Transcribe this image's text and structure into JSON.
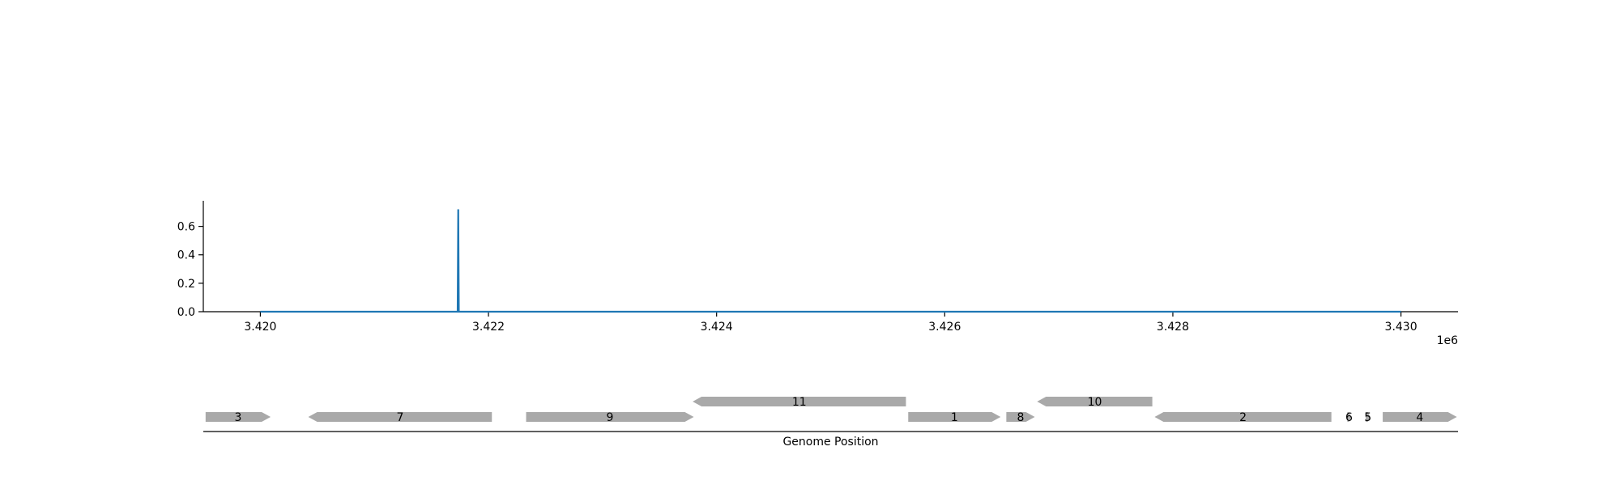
{
  "chart_data": {
    "type": "line",
    "title": "",
    "signal": {
      "ylabel": "",
      "xlim": [
        3419500,
        3430500
      ],
      "ylim": [
        0,
        0.78
      ],
      "x_ticks": [
        3420000,
        3422000,
        3424000,
        3426000,
        3428000,
        3430000
      ],
      "x_tick_labels": [
        "3.420",
        "3.422",
        "3.424",
        "3.426",
        "3.428",
        "3.430"
      ],
      "x_offset_label": "1e6",
      "y_ticks": [
        0.0,
        0.2,
        0.4,
        0.6
      ],
      "y_tick_labels": [
        "0.0",
        "0.2",
        "0.4",
        "0.6"
      ],
      "series": [
        {
          "color": "#1f77b4",
          "points": [
            [
              3420000,
              0.0
            ],
            [
              3421730,
              0.0
            ],
            [
              3421735,
              0.72
            ],
            [
              3421740,
              0.0
            ],
            [
              3430000,
              0.0
            ]
          ]
        }
      ]
    },
    "genes": {
      "xlabel": "Genome Position",
      "items": [
        {
          "label": "3",
          "start": 3419520,
          "end": 3420090,
          "strand": "+",
          "row": 0
        },
        {
          "label": "7",
          "start": 3420420,
          "end": 3422030,
          "strand": "-",
          "row": 0
        },
        {
          "label": "9",
          "start": 3422330,
          "end": 3423800,
          "strand": "+",
          "row": 0
        },
        {
          "label": "11",
          "start": 3423790,
          "end": 3425660,
          "strand": "-",
          "row": 1
        },
        {
          "label": "1",
          "start": 3425680,
          "end": 3426490,
          "strand": "+",
          "row": 0
        },
        {
          "label": "8",
          "start": 3426540,
          "end": 3426790,
          "strand": "+",
          "row": 0
        },
        {
          "label": "10",
          "start": 3426810,
          "end": 3427820,
          "strand": "-",
          "row": 1
        },
        {
          "label": "2",
          "start": 3427840,
          "end": 3429390,
          "strand": "-",
          "row": 0
        },
        {
          "label": "6",
          "start": 3429530,
          "end": 3429560,
          "strand": "+",
          "row": 0
        },
        {
          "label": "5",
          "start": 3429690,
          "end": 3429730,
          "strand": "+",
          "row": 0
        },
        {
          "label": "4",
          "start": 3429840,
          "end": 3430490,
          "strand": "+",
          "row": 0
        }
      ]
    }
  }
}
